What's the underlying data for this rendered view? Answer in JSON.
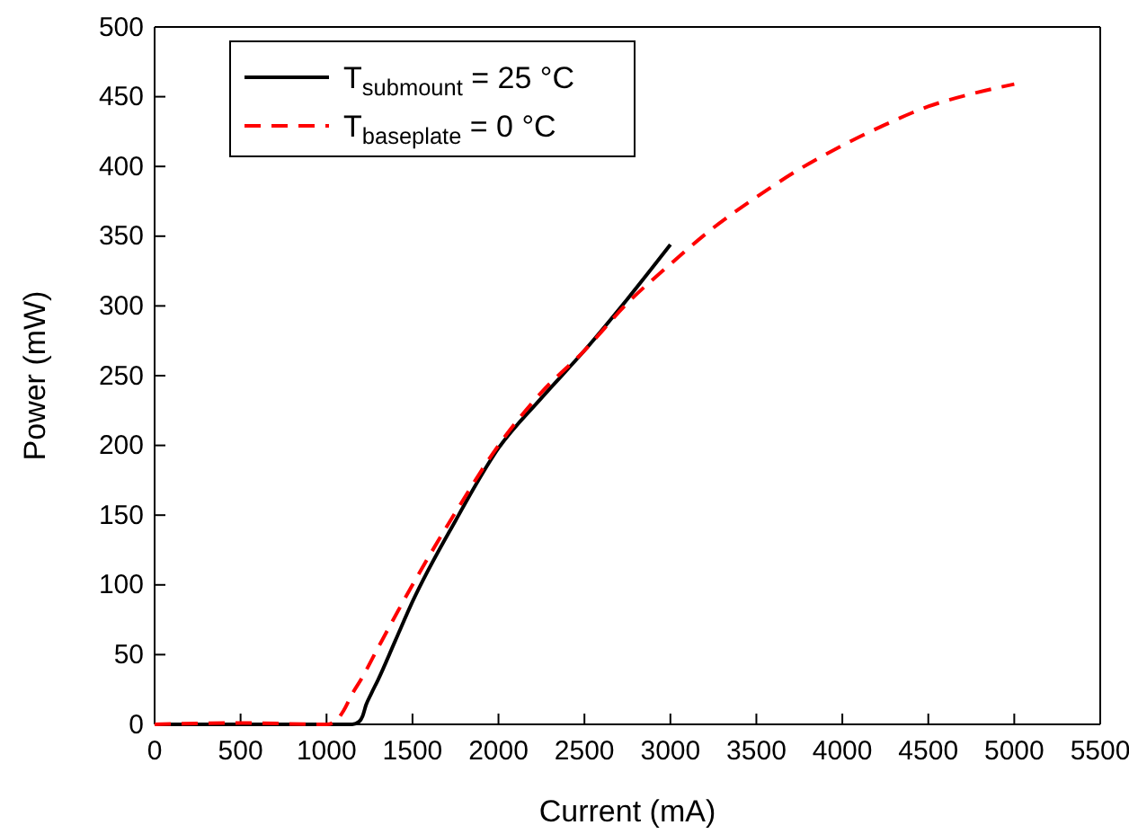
{
  "chart_data": {
    "type": "line",
    "xlabel": "Current (mA)",
    "ylabel": "Power (mW)",
    "xlim": [
      0,
      5500
    ],
    "xticks": [
      0,
      500,
      1000,
      1500,
      2000,
      2500,
      3000,
      3500,
      4000,
      4500,
      5000,
      5500
    ],
    "ylim": [
      0,
      500
    ],
    "yticks": [
      0,
      50,
      100,
      150,
      200,
      250,
      300,
      350,
      400,
      450,
      500
    ],
    "grid": false,
    "legend": "top left",
    "marker": "none",
    "series": [
      {
        "name": "T$_{submount}$ = 25 °C",
        "color": "#000000",
        "line_style": "solid",
        "x": [
          0,
          500,
          1000,
          1150,
          1190,
          1210,
          1230,
          1260,
          1300,
          1400,
          1500,
          1750,
          2000,
          2250,
          2500,
          2750,
          3000
        ],
        "values": [
          0,
          0,
          0,
          0,
          2,
          6,
          14,
          22,
          32,
          60,
          88,
          146,
          198,
          234,
          268,
          305,
          344
        ]
      },
      {
        "name": "T$_{baseplate}$ = 0 °C",
        "color": "#ff0000",
        "line_style": "dashed",
        "x": [
          0,
          500,
          1000,
          1050,
          1100,
          1150,
          1200,
          1300,
          1500,
          1750,
          2000,
          2250,
          2500,
          2750,
          3000,
          3250,
          3500,
          3750,
          4000,
          4250,
          4500,
          4750,
          5000
        ],
        "values": [
          0,
          1,
          0,
          2,
          10,
          22,
          32,
          55,
          100,
          152,
          200,
          238,
          268,
          302,
          330,
          356,
          378,
          398,
          415,
          430,
          443,
          452,
          459
        ]
      }
    ]
  }
}
